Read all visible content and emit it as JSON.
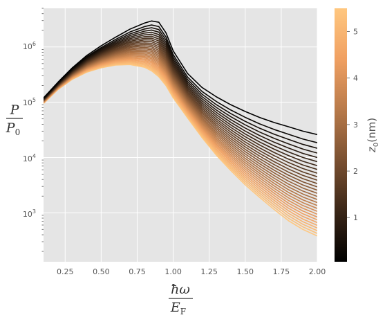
{
  "chart_data": {
    "type": "line",
    "title": "",
    "xlabel": {
      "numerator": "ħω",
      "denominator": "E",
      "denominator_sub": "F"
    },
    "ylabel": {
      "numerator": "P",
      "denominator": "P",
      "denominator_sub": "0"
    },
    "xlim": [
      0.1,
      2.0
    ],
    "ylim": [
      130,
      5000000
    ],
    "yscale": "log",
    "grid": true,
    "x_ticks": [
      "0.25",
      "0.50",
      "0.75",
      "1.00",
      "1.25",
      "1.50",
      "1.75",
      "2.00"
    ],
    "y_ticks": [
      {
        "base": "10",
        "exp": "3"
      },
      {
        "base": "10",
        "exp": "4"
      },
      {
        "base": "10",
        "exp": "5"
      },
      {
        "base": "10",
        "exp": "6"
      }
    ],
    "series_family": {
      "parameter": "z0",
      "count": 30,
      "parameter_range": [
        0.05,
        5.5
      ],
      "colormap": "copper",
      "colormap_stops": [
        "#000000",
        "#3a2617",
        "#7a5031",
        "#b87a4a",
        "#f0a062",
        "#ffc77f"
      ],
      "x": [
        0.1,
        0.2,
        0.3,
        0.4,
        0.5,
        0.6,
        0.7,
        0.8,
        0.85,
        0.9,
        0.95,
        1.0,
        1.1,
        1.2,
        1.3,
        1.4,
        1.5,
        1.6,
        1.7,
        1.8,
        1.9,
        2.0
      ],
      "envelope_low_z": [
        120000,
        230000,
        420000,
        700000,
        1050000,
        1500000,
        2100000,
        2700000,
        2950000,
        2800000,
        1800000,
        850000,
        330000,
        185000,
        125000,
        90000,
        68000,
        53000,
        43000,
        36000,
        30000,
        26000
      ],
      "envelope_high_z": [
        95000,
        170000,
        260000,
        350000,
        420000,
        470000,
        480000,
        430000,
        370000,
        290000,
        200000,
        120000,
        52000,
        23000,
        11000,
        5800,
        3200,
        1900,
        1150,
        720,
        500,
        380
      ]
    },
    "colorbar": {
      "label_symbol": "z",
      "label_sub": "0",
      "label_unit": "(nm)",
      "ticks": [
        "1",
        "2",
        "3",
        "4",
        "5"
      ],
      "tick_values": [
        1,
        2,
        3,
        4,
        5
      ],
      "range": [
        0.05,
        5.5
      ]
    }
  }
}
